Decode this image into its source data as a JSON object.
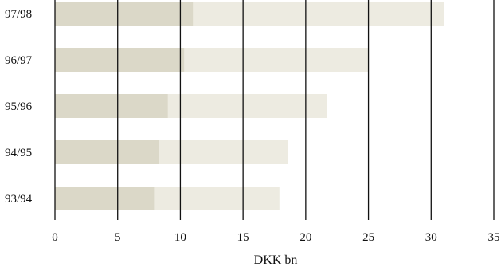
{
  "chart_data": {
    "type": "bar",
    "orientation": "horizontal",
    "barmode": "overlay",
    "categories": [
      "97/98",
      "96/97",
      "95/96",
      "94/95",
      "93/94"
    ],
    "series": [
      {
        "values": [
          31,
          25,
          21.7,
          18.6,
          17.9
        ],
        "color": "#edebe1"
      },
      {
        "values": [
          11,
          10.3,
          9.0,
          8.3,
          7.9
        ],
        "color": "#dbd8c8"
      }
    ],
    "xticks": [
      0,
      5,
      10,
      15,
      20,
      25,
      30,
      35
    ],
    "xlim": [
      0,
      35
    ],
    "xlabel": "DKK bn",
    "ylabel": "",
    "title": "",
    "grid": "vertical",
    "gridline_color": "#111111",
    "legend": "none"
  }
}
